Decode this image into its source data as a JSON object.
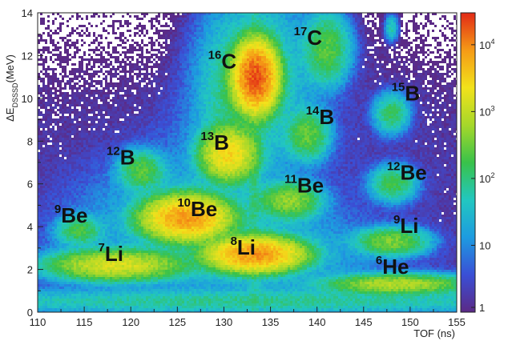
{
  "chart_data": {
    "type": "heatmap",
    "title": "",
    "xlabel": "TOF (ns)",
    "ylabel_main": "ΔE",
    "ylabel_sub": "DSSSD",
    "ylabel_unit": "(MeV)",
    "xlim": [
      110,
      155
    ],
    "ylim": [
      0,
      14
    ],
    "x_ticks": [
      "110",
      "115",
      "120",
      "125",
      "130",
      "135",
      "140",
      "145",
      "150",
      "155"
    ],
    "y_ticks": [
      "0",
      "2",
      "4",
      "6",
      "8",
      "10",
      "12",
      "14"
    ],
    "colorbar": {
      "scale": "log",
      "range": [
        1,
        30000
      ],
      "ticks": [
        {
          "value": 1,
          "label": "1"
        },
        {
          "value": 10,
          "label": "10"
        },
        {
          "value": 100,
          "label": "10",
          "exp": "2"
        },
        {
          "value": 1000,
          "label": "10",
          "exp": "3"
        },
        {
          "value": 10000,
          "label": "10",
          "exp": "4"
        }
      ],
      "colors": [
        "#5b2a86",
        "#3a4fd6",
        "#1d9be0",
        "#22c7c0",
        "#39c24a",
        "#a6d82a",
        "#f2e21b",
        "#f59a16",
        "#e22a16"
      ]
    },
    "blobs": [
      {
        "x": 133.4,
        "y": 11.0,
        "sx": 1.0,
        "sy": 0.7,
        "intensity": 20000
      },
      {
        "x": 130.5,
        "y": 7.4,
        "sx": 1.3,
        "sy": 0.55,
        "intensity": 3000
      },
      {
        "x": 126.0,
        "y": 4.4,
        "sx": 2.0,
        "sy": 0.45,
        "intensity": 8000
      },
      {
        "x": 133.3,
        "y": 2.7,
        "sx": 2.2,
        "sy": 0.35,
        "intensity": 9000
      },
      {
        "x": 118.5,
        "y": 2.2,
        "sx": 3.2,
        "sy": 0.32,
        "intensity": 1500
      },
      {
        "x": 148.5,
        "y": 1.3,
        "sx": 3.5,
        "sy": 0.22,
        "intensity": 800
      },
      {
        "x": 141.0,
        "y": 12.3,
        "sx": 1.2,
        "sy": 0.8,
        "intensity": 250
      },
      {
        "x": 139.0,
        "y": 8.3,
        "sx": 1.1,
        "sy": 0.55,
        "intensity": 300
      },
      {
        "x": 148.0,
        "y": 9.3,
        "sx": 0.9,
        "sy": 0.45,
        "intensity": 150
      },
      {
        "x": 121.2,
        "y": 6.6,
        "sx": 1.2,
        "sy": 0.45,
        "intensity": 250
      },
      {
        "x": 137.0,
        "y": 5.2,
        "sx": 1.6,
        "sy": 0.4,
        "intensity": 500
      },
      {
        "x": 148.2,
        "y": 6.0,
        "sx": 1.2,
        "sy": 0.4,
        "intensity": 180
      },
      {
        "x": 114.5,
        "y": 3.8,
        "sx": 1.2,
        "sy": 0.35,
        "intensity": 200
      },
      {
        "x": 148.0,
        "y": 3.3,
        "sx": 1.8,
        "sy": 0.3,
        "intensity": 400
      },
      {
        "x": 133.3,
        "y": 7.5,
        "sx": 0.35,
        "sy": 5.5,
        "intensity": 60
      },
      {
        "x": 130.5,
        "y": 10.0,
        "sx": 1.6,
        "sy": 1.6,
        "intensity": 60
      },
      {
        "x": 133.0,
        "y": 0.5,
        "sx": 20.0,
        "sy": 0.3,
        "intensity": 80
      },
      {
        "x": 148.0,
        "y": 13.3,
        "sx": 0.35,
        "sy": 0.3,
        "intensity": 60
      }
    ],
    "annotations": [
      {
        "mass": "16",
        "element": "C",
        "x": 128.3,
        "y": 11.4
      },
      {
        "mass": "17",
        "element": "C",
        "x": 137.5,
        "y": 12.5
      },
      {
        "mass": "15",
        "element": "B",
        "x": 148.0,
        "y": 9.9
      },
      {
        "mass": "14",
        "element": "B",
        "x": 138.8,
        "y": 8.8
      },
      {
        "mass": "13",
        "element": "B",
        "x": 127.5,
        "y": 7.6
      },
      {
        "mass": "12",
        "element": "B",
        "x": 117.4,
        "y": 6.9
      },
      {
        "mass": "12",
        "element": "Be",
        "x": 147.5,
        "y": 6.2
      },
      {
        "mass": "11",
        "element": "Be",
        "x": 136.5,
        "y": 5.6
      },
      {
        "mass": "10",
        "element": "Be",
        "x": 125.0,
        "y": 4.5
      },
      {
        "mass": "9",
        "element": "Be",
        "x": 111.8,
        "y": 4.2
      },
      {
        "mass": "9",
        "element": "Li",
        "x": 148.2,
        "y": 3.7
      },
      {
        "mass": "8",
        "element": "Li",
        "x": 130.7,
        "y": 2.7
      },
      {
        "mass": "7",
        "element": "Li",
        "x": 116.5,
        "y": 2.4
      },
      {
        "mass": "6",
        "element": "He",
        "x": 146.3,
        "y": 1.8
      }
    ]
  }
}
